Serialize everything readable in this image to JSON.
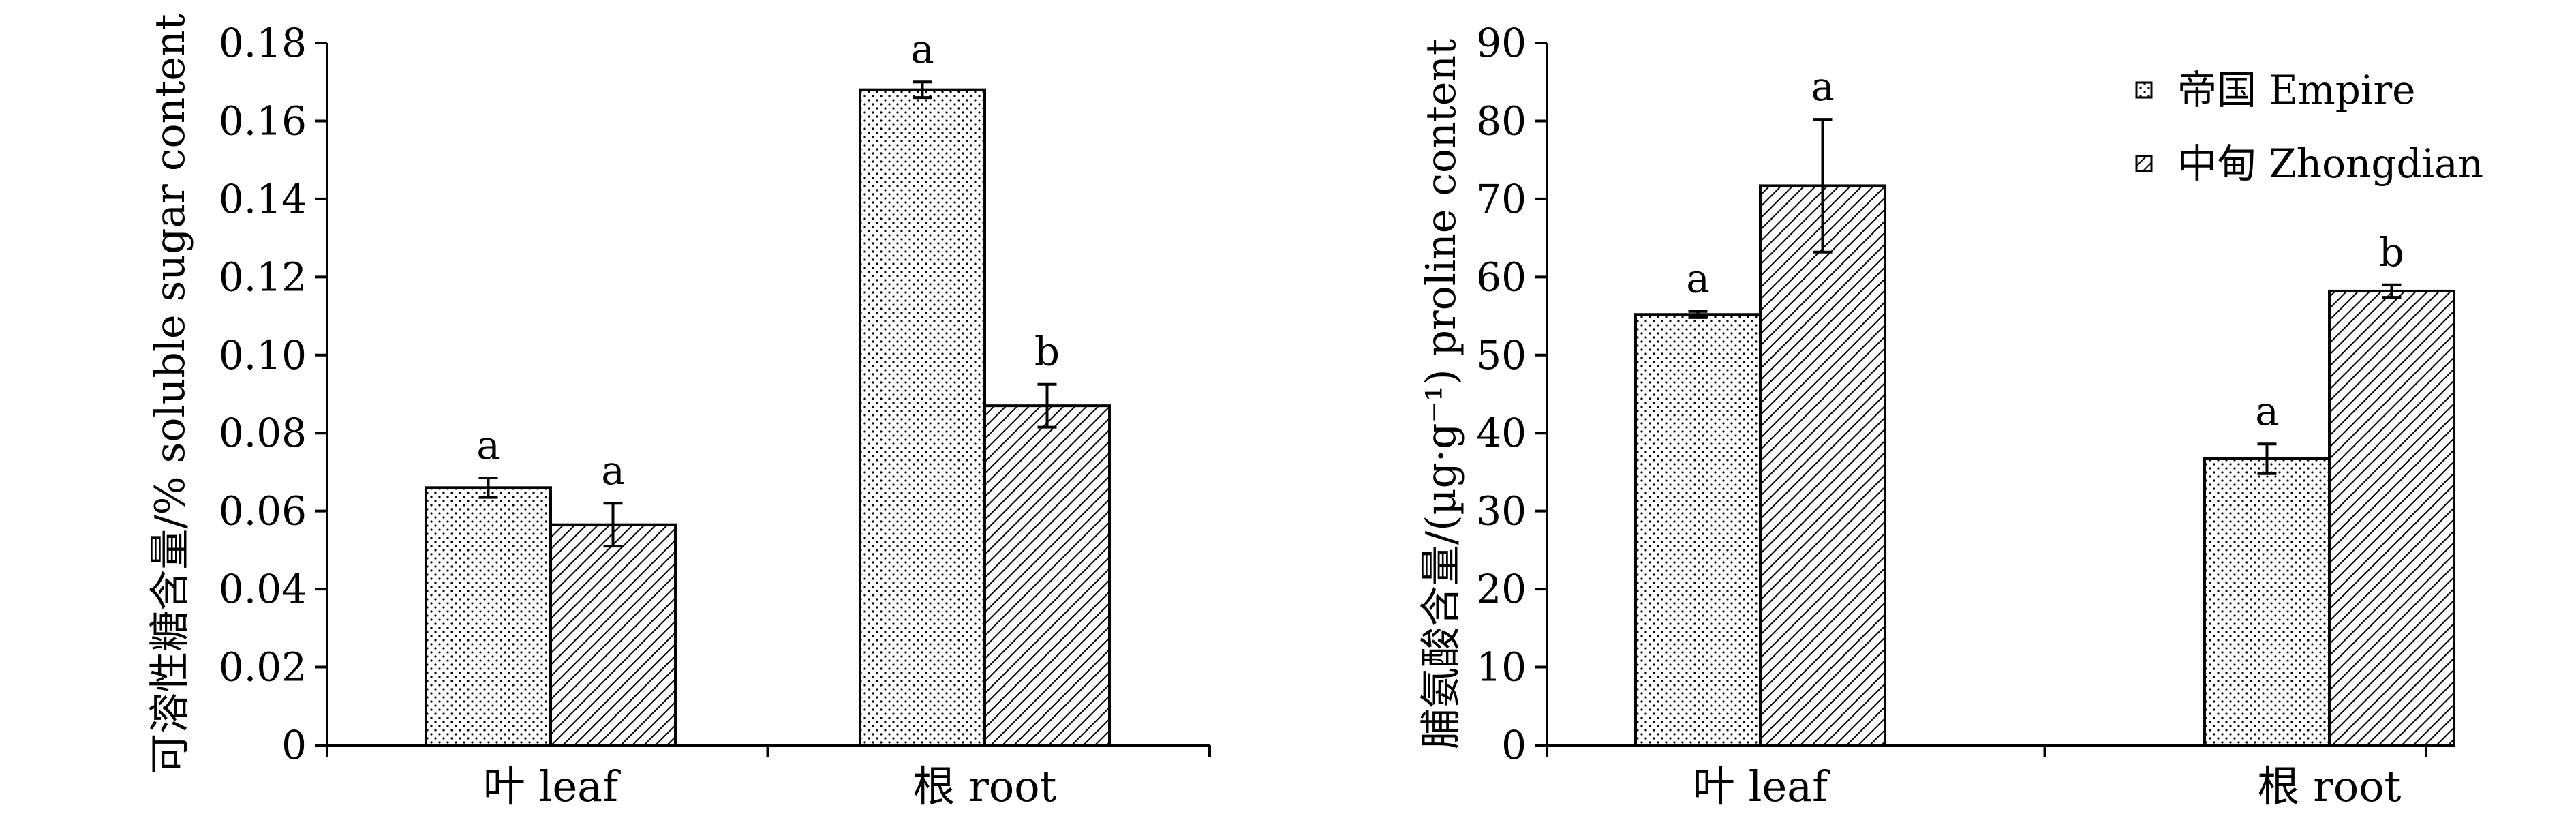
{
  "legend": [
    {
      "label": "帝国 Empire",
      "pattern": "dots"
    },
    {
      "label": "中甸 Zhongdian",
      "pattern": "hatch"
    }
  ],
  "chart_data": [
    {
      "type": "bar",
      "ylabel": "可溶性糖含量/% soluble sugar content",
      "ylim": [
        0,
        0.18
      ],
      "yticks": [
        "0",
        "0.02",
        "0.04",
        "0.06",
        "0.08",
        "0.10",
        "0.12",
        "0.14",
        "0.16",
        "0.18"
      ],
      "categories": [
        "叶 leaf",
        "根 root"
      ],
      "series": [
        {
          "name": "帝国 Empire",
          "values": [
            0.066,
            0.168
          ],
          "errors": [
            0.0025,
            0.002
          ],
          "letters": [
            "a",
            "a"
          ]
        },
        {
          "name": "中甸 Zhongdian",
          "values": [
            0.0565,
            0.087
          ],
          "errors": [
            0.0055,
            0.0055
          ],
          "letters": [
            "a",
            "b"
          ]
        }
      ]
    },
    {
      "type": "bar",
      "ylabel": "脯氨酸含量/(µg·g⁻¹) proline content",
      "ylim": [
        0,
        90
      ],
      "yticks": [
        "0",
        "10",
        "20",
        "30",
        "40",
        "50",
        "60",
        "70",
        "80",
        "90"
      ],
      "categories": [
        "叶 leaf",
        "根 root"
      ],
      "legend_position": "top-right",
      "series": [
        {
          "name": "帝国 Empire",
          "values": [
            55.2,
            36.7
          ],
          "errors": [
            0.4,
            1.9
          ],
          "letters": [
            "a",
            "a"
          ]
        },
        {
          "name": "中甸 Zhongdian",
          "values": [
            71.7,
            58.2
          ],
          "errors": [
            8.5,
            0.8
          ],
          "letters": [
            "a",
            "b"
          ]
        }
      ]
    }
  ]
}
